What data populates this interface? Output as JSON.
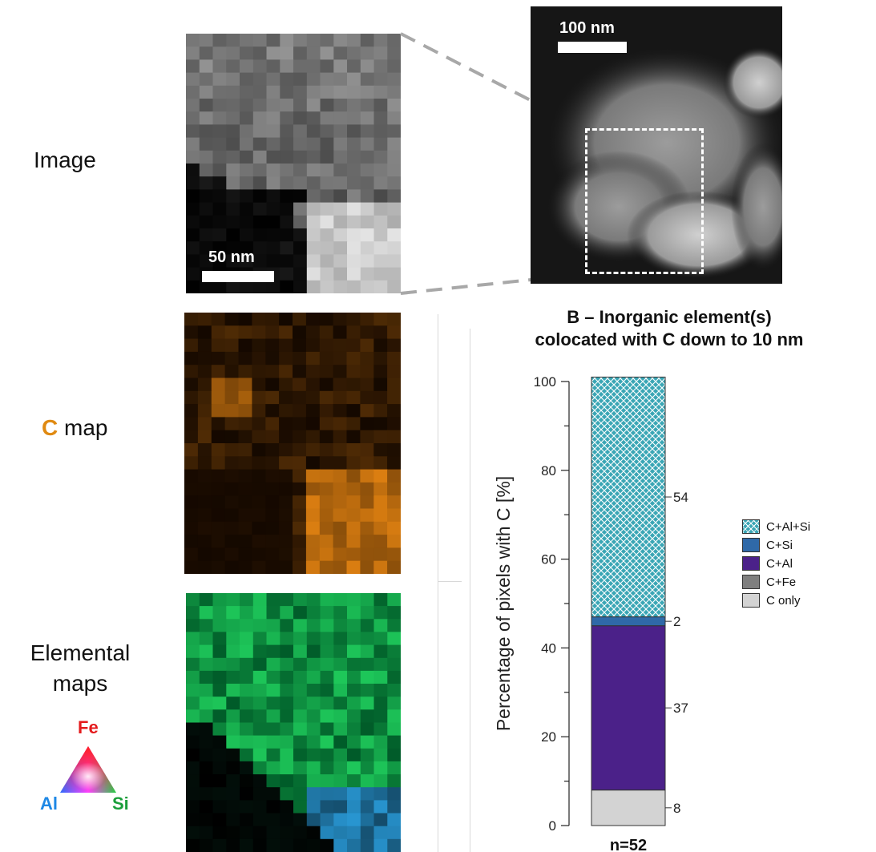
{
  "row_labels": {
    "image": "Image",
    "cmap_letter": "C",
    "cmap_rest": " map",
    "elemental_line1": "Elemental",
    "elemental_line2": "maps"
  },
  "scalebars": {
    "zoom": "50 nm",
    "overview": "100 nm"
  },
  "triangle": {
    "fe": "Fe",
    "al": "Al",
    "si": "Si"
  },
  "colors": {
    "c_map": "#e08a12",
    "hatched": "#3aa6b5",
    "c_si": "#2f69a8",
    "c_al": "#4b2189",
    "c_fe": "#7f7f7f",
    "c_only": "#d3d3d3"
  },
  "chart_data": {
    "type": "bar",
    "title_line1": "B – Inorganic element(s)",
    "title_line2": "colocated with C down to 10 nm",
    "ylabel": "Percentage of pixels with C [%]",
    "xlabel": "n=52",
    "ylim": [
      0,
      100
    ],
    "yticks": [
      0,
      20,
      40,
      60,
      80,
      100
    ],
    "stack_order": [
      "C only",
      "C+Fe",
      "C+Al",
      "C+Si",
      "C+Al+Si"
    ],
    "series": [
      {
        "name": "C only",
        "value": 8,
        "label": "8"
      },
      {
        "name": "C+Fe",
        "value": 0,
        "label": ""
      },
      {
        "name": "C+Al",
        "value": 37,
        "label": "37"
      },
      {
        "name": "C+Si",
        "value": 2,
        "label": "2"
      },
      {
        "name": "C+Al+Si",
        "value": 54,
        "label": "54"
      }
    ],
    "legend": [
      "C+Al+Si",
      "C+Si",
      "C+Al",
      "C+Fe",
      "C only"
    ],
    "legend_position": "right"
  }
}
